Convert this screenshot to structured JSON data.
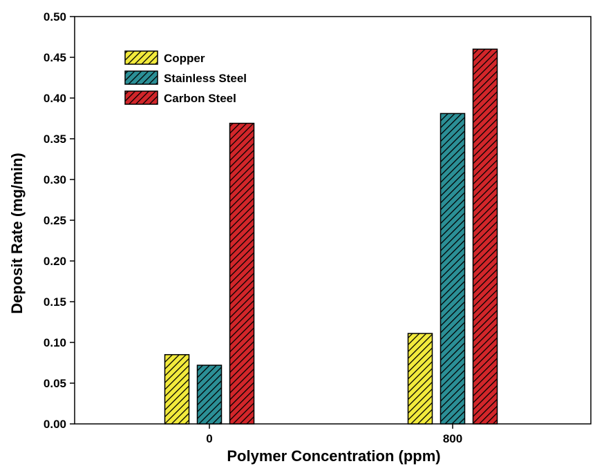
{
  "chart_data": {
    "type": "bar",
    "title": "",
    "xlabel": "Polymer Concentration (ppm)",
    "ylabel": "Deposit Rate (mg/min)",
    "categories": [
      "0",
      "800"
    ],
    "ylim": [
      0,
      0.5
    ],
    "yticks": [
      "0.00",
      "0.05",
      "0.10",
      "0.15",
      "0.20",
      "0.25",
      "0.30",
      "0.35",
      "0.40",
      "0.45",
      "0.50"
    ],
    "legend_position": "top-left",
    "grid": false,
    "series": [
      {
        "name": "Copper",
        "color": "#f2ea3c",
        "values": [
          0.085,
          0.111
        ]
      },
      {
        "name": "Stainless Steel",
        "color": "#2b8f96",
        "values": [
          0.072,
          0.381
        ]
      },
      {
        "name": "Carbon Steel",
        "color": "#d2262a",
        "values": [
          0.369,
          0.46
        ]
      }
    ]
  }
}
